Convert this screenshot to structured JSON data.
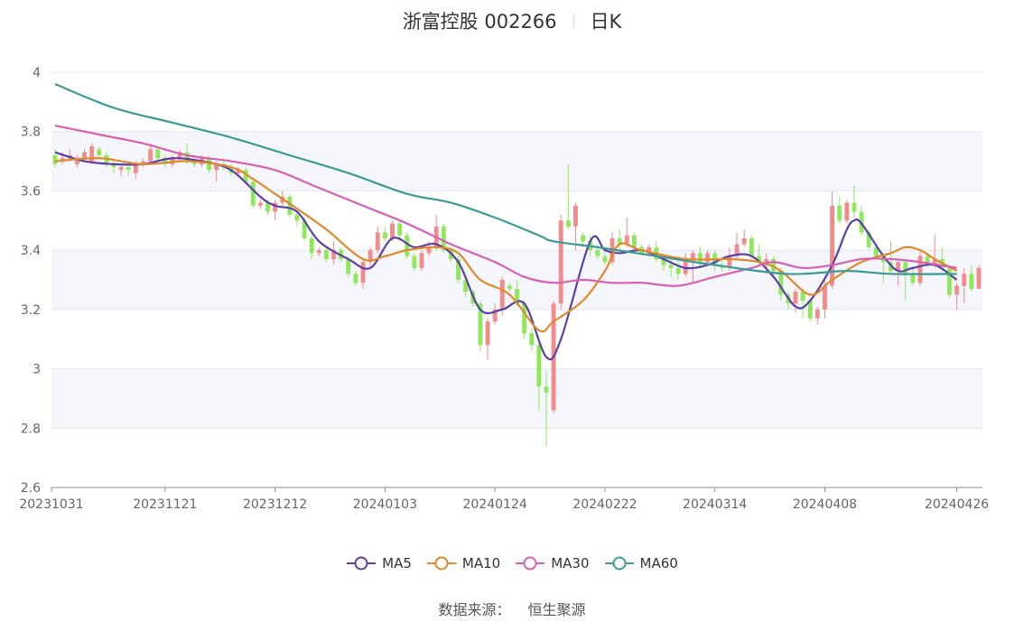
{
  "title": {
    "name": "浙富控股 002266",
    "period": "日K"
  },
  "source": {
    "label": "数据来源：",
    "value": "恒生聚源"
  },
  "chart_data": {
    "type": "candlestick",
    "x_ticks": [
      "20231031",
      "20231121",
      "20231212",
      "20240103",
      "20240124",
      "20240222",
      "20240314",
      "20240408",
      "20240426"
    ],
    "x_tick_index": [
      0,
      15,
      30,
      45,
      60,
      75,
      90,
      105,
      123
    ],
    "y_ticks": [
      "4",
      "3.8",
      "3.6",
      "3.4",
      "3.2",
      "3",
      "2.8",
      "2.6"
    ],
    "ylim": [
      2.6,
      4.0
    ],
    "up_color": "#f28b8b",
    "down_color": "#8fe85a",
    "candles": [
      [
        3.72,
        3.69,
        3.74,
        3.68
      ],
      [
        3.7,
        3.71,
        3.73,
        3.69
      ],
      [
        3.71,
        3.72,
        3.74,
        3.7
      ],
      [
        3.69,
        3.71,
        3.72,
        3.68
      ],
      [
        3.71,
        3.73,
        3.74,
        3.7
      ],
      [
        3.7,
        3.75,
        3.76,
        3.69
      ],
      [
        3.74,
        3.72,
        3.75,
        3.71
      ],
      [
        3.72,
        3.69,
        3.73,
        3.68
      ],
      [
        3.69,
        3.68,
        3.7,
        3.66
      ],
      [
        3.67,
        3.68,
        3.69,
        3.65
      ],
      [
        3.68,
        3.67,
        3.69,
        3.65
      ],
      [
        3.66,
        3.69,
        3.7,
        3.64
      ],
      [
        3.69,
        3.7,
        3.71,
        3.68
      ],
      [
        3.7,
        3.74,
        3.76,
        3.69
      ],
      [
        3.74,
        3.71,
        3.75,
        3.7
      ],
      [
        3.71,
        3.69,
        3.72,
        3.68
      ],
      [
        3.69,
        3.71,
        3.72,
        3.68
      ],
      [
        3.71,
        3.73,
        3.74,
        3.7
      ],
      [
        3.73,
        3.7,
        3.76,
        3.69
      ],
      [
        3.7,
        3.69,
        3.71,
        3.68
      ],
      [
        3.69,
        3.71,
        3.72,
        3.68
      ],
      [
        3.71,
        3.67,
        3.72,
        3.66
      ],
      [
        3.67,
        3.69,
        3.7,
        3.63
      ],
      [
        3.69,
        3.68,
        3.71,
        3.67
      ],
      [
        3.68,
        3.66,
        3.69,
        3.65
      ],
      [
        3.66,
        3.67,
        3.68,
        3.65
      ],
      [
        3.67,
        3.63,
        3.68,
        3.62
      ],
      [
        3.63,
        3.55,
        3.64,
        3.54
      ],
      [
        3.55,
        3.56,
        3.57,
        3.54
      ],
      [
        3.56,
        3.53,
        3.57,
        3.52
      ],
      [
        3.53,
        3.56,
        3.57,
        3.5
      ],
      [
        3.56,
        3.58,
        3.6,
        3.55
      ],
      [
        3.58,
        3.52,
        3.59,
        3.51
      ],
      [
        3.52,
        3.5,
        3.53,
        3.48
      ],
      [
        3.5,
        3.44,
        3.51,
        3.43
      ],
      [
        3.44,
        3.39,
        3.45,
        3.37
      ],
      [
        3.39,
        3.4,
        3.41,
        3.38
      ],
      [
        3.4,
        3.37,
        3.41,
        3.36
      ],
      [
        3.37,
        3.4,
        3.43,
        3.35
      ],
      [
        3.4,
        3.37,
        3.41,
        3.36
      ],
      [
        3.37,
        3.32,
        3.38,
        3.31
      ],
      [
        3.32,
        3.29,
        3.33,
        3.28
      ],
      [
        3.29,
        3.36,
        3.37,
        3.27
      ],
      [
        3.36,
        3.4,
        3.41,
        3.34
      ],
      [
        3.4,
        3.46,
        3.48,
        3.39
      ],
      [
        3.46,
        3.44,
        3.48,
        3.43
      ],
      [
        3.44,
        3.49,
        3.5,
        3.43
      ],
      [
        3.49,
        3.45,
        3.5,
        3.43
      ],
      [
        3.45,
        3.38,
        3.46,
        3.37
      ],
      [
        3.38,
        3.34,
        3.39,
        3.33
      ],
      [
        3.34,
        3.39,
        3.4,
        3.33
      ],
      [
        3.39,
        3.41,
        3.43,
        3.38
      ],
      [
        3.41,
        3.48,
        3.52,
        3.4
      ],
      [
        3.48,
        3.4,
        3.49,
        3.39
      ],
      [
        3.4,
        3.37,
        3.41,
        3.36
      ],
      [
        3.37,
        3.3,
        3.38,
        3.29
      ],
      [
        3.3,
        3.26,
        3.31,
        3.24
      ],
      [
        3.26,
        3.22,
        3.27,
        3.21
      ],
      [
        3.22,
        3.08,
        3.23,
        3.06
      ],
      [
        3.08,
        3.16,
        3.17,
        3.03
      ],
      [
        3.16,
        3.2,
        3.22,
        3.15
      ],
      [
        3.2,
        3.3,
        3.31,
        3.18
      ],
      [
        3.28,
        3.27,
        3.29,
        3.26
      ],
      [
        3.27,
        3.22,
        3.3,
        3.21
      ],
      [
        3.22,
        3.12,
        3.23,
        3.1
      ],
      [
        3.12,
        3.08,
        3.14,
        3.06
      ],
      [
        3.08,
        2.94,
        3.09,
        2.86
      ],
      [
        2.94,
        2.92,
        2.99,
        2.74
      ],
      [
        2.86,
        3.22,
        3.23,
        2.85
      ],
      [
        3.22,
        3.5,
        3.52,
        3.2
      ],
      [
        3.5,
        3.48,
        3.69,
        3.47
      ],
      [
        3.48,
        3.55,
        3.56,
        3.4
      ],
      [
        3.45,
        3.43,
        3.46,
        3.41
      ],
      [
        3.43,
        3.4,
        3.45,
        3.38
      ],
      [
        3.4,
        3.38,
        3.42,
        3.37
      ],
      [
        3.38,
        3.36,
        3.4,
        3.35
      ],
      [
        3.36,
        3.44,
        3.46,
        3.35
      ],
      [
        3.44,
        3.42,
        3.47,
        3.4
      ],
      [
        3.42,
        3.45,
        3.51,
        3.41
      ],
      [
        3.45,
        3.41,
        3.46,
        3.4
      ],
      [
        3.41,
        3.39,
        3.42,
        3.38
      ],
      [
        3.39,
        3.41,
        3.42,
        3.38
      ],
      [
        3.41,
        3.37,
        3.43,
        3.36
      ],
      [
        3.37,
        3.35,
        3.38,
        3.33
      ],
      [
        3.35,
        3.34,
        3.37,
        3.31
      ],
      [
        3.34,
        3.32,
        3.36,
        3.3
      ],
      [
        3.32,
        3.37,
        3.39,
        3.31
      ],
      [
        3.37,
        3.39,
        3.4,
        3.29
      ],
      [
        3.39,
        3.36,
        3.41,
        3.34
      ],
      [
        3.36,
        3.39,
        3.4,
        3.35
      ],
      [
        3.39,
        3.35,
        3.4,
        3.33
      ],
      [
        3.35,
        3.34,
        3.37,
        3.33
      ],
      [
        3.34,
        3.38,
        3.41,
        3.33
      ],
      [
        3.38,
        3.42,
        3.46,
        3.37
      ],
      [
        3.42,
        3.44,
        3.47,
        3.41
      ],
      [
        3.44,
        3.38,
        3.45,
        3.37
      ],
      [
        3.38,
        3.36,
        3.42,
        3.35
      ],
      [
        3.36,
        3.37,
        3.39,
        3.32
      ],
      [
        3.37,
        3.33,
        3.38,
        3.31
      ],
      [
        3.33,
        3.25,
        3.34,
        3.23
      ],
      [
        3.25,
        3.22,
        3.26,
        3.2
      ],
      [
        3.22,
        3.26,
        3.27,
        3.19
      ],
      [
        3.26,
        3.23,
        3.27,
        3.17
      ],
      [
        3.23,
        3.17,
        3.24,
        3.16
      ],
      [
        3.17,
        3.2,
        3.21,
        3.15
      ],
      [
        3.2,
        3.28,
        3.3,
        3.17
      ],
      [
        3.28,
        3.55,
        3.6,
        3.27
      ],
      [
        3.55,
        3.5,
        3.58,
        3.49
      ],
      [
        3.5,
        3.56,
        3.57,
        3.49
      ],
      [
        3.56,
        3.53,
        3.62,
        3.51
      ],
      [
        3.53,
        3.46,
        3.55,
        3.45
      ],
      [
        3.46,
        3.41,
        3.47,
        3.4
      ],
      [
        3.41,
        3.38,
        3.42,
        3.37
      ],
      [
        3.38,
        3.36,
        3.39,
        3.29
      ],
      [
        3.36,
        3.33,
        3.43,
        3.32
      ],
      [
        3.33,
        3.36,
        3.37,
        3.28
      ],
      [
        3.36,
        3.32,
        3.37,
        3.23
      ],
      [
        3.32,
        3.29,
        3.34,
        3.28
      ],
      [
        3.29,
        3.38,
        3.4,
        3.28
      ],
      [
        3.38,
        3.35,
        3.39,
        3.34
      ],
      [
        3.35,
        3.37,
        3.45,
        3.34
      ],
      [
        3.37,
        3.34,
        3.41,
        3.33
      ],
      [
        3.34,
        3.25,
        3.35,
        3.24
      ],
      [
        3.25,
        3.28,
        3.29,
        3.2
      ],
      [
        3.28,
        3.32,
        3.34,
        3.22
      ],
      [
        3.32,
        3.27,
        3.35,
        3.26
      ],
      [
        3.27,
        3.34,
        3.35,
        3.27
      ]
    ],
    "ma_series": [
      {
        "name": "MA5",
        "color": "#5b3fa8",
        "anchors": [
          [
            0,
            3.73
          ],
          [
            4,
            3.7
          ],
          [
            8,
            3.69
          ],
          [
            12,
            3.69
          ],
          [
            16,
            3.71
          ],
          [
            20,
            3.7
          ],
          [
            24,
            3.67
          ],
          [
            28,
            3.58
          ],
          [
            30,
            3.55
          ],
          [
            33,
            3.53
          ],
          [
            36,
            3.43
          ],
          [
            40,
            3.37
          ],
          [
            43,
            3.34
          ],
          [
            46,
            3.44
          ],
          [
            49,
            3.41
          ],
          [
            52,
            3.42
          ],
          [
            55,
            3.36
          ],
          [
            58,
            3.2
          ],
          [
            61,
            3.2
          ],
          [
            64,
            3.22
          ],
          [
            67,
            3.04
          ],
          [
            69,
            3.1
          ],
          [
            73,
            3.43
          ],
          [
            75,
            3.4
          ],
          [
            77,
            3.39
          ],
          [
            80,
            3.4
          ],
          [
            83,
            3.37
          ],
          [
            86,
            3.34
          ],
          [
            89,
            3.35
          ],
          [
            92,
            3.38
          ],
          [
            95,
            3.38
          ],
          [
            98,
            3.31
          ],
          [
            101,
            3.21
          ],
          [
            103,
            3.23
          ],
          [
            106,
            3.35
          ],
          [
            108,
            3.47
          ],
          [
            109,
            3.5
          ],
          [
            110,
            3.49
          ],
          [
            113,
            3.38
          ],
          [
            115,
            3.33
          ],
          [
            117,
            3.34
          ],
          [
            120,
            3.35
          ],
          [
            123,
            3.3
          ]
        ]
      },
      {
        "name": "MA10",
        "color": "#e08a2a",
        "anchors": [
          [
            0,
            3.7
          ],
          [
            6,
            3.71
          ],
          [
            12,
            3.69
          ],
          [
            18,
            3.7
          ],
          [
            24,
            3.68
          ],
          [
            27,
            3.64
          ],
          [
            30,
            3.59
          ],
          [
            33,
            3.54
          ],
          [
            37,
            3.47
          ],
          [
            42,
            3.37
          ],
          [
            45,
            3.38
          ],
          [
            48,
            3.4
          ],
          [
            52,
            3.41
          ],
          [
            55,
            3.39
          ],
          [
            58,
            3.3
          ],
          [
            62,
            3.25
          ],
          [
            66,
            3.13
          ],
          [
            68,
            3.16
          ],
          [
            72,
            3.23
          ],
          [
            75,
            3.33
          ],
          [
            77,
            3.42
          ],
          [
            80,
            3.4
          ],
          [
            86,
            3.37
          ],
          [
            92,
            3.37
          ],
          [
            96,
            3.36
          ],
          [
            99,
            3.33
          ],
          [
            103,
            3.25
          ],
          [
            106,
            3.3
          ],
          [
            110,
            3.36
          ],
          [
            114,
            3.39
          ],
          [
            116,
            3.41
          ],
          [
            118,
            3.4
          ],
          [
            120,
            3.37
          ],
          [
            123,
            3.33
          ]
        ]
      },
      {
        "name": "MA30",
        "color": "#d95fb5",
        "anchors": [
          [
            0,
            3.82
          ],
          [
            6,
            3.79
          ],
          [
            12,
            3.76
          ],
          [
            18,
            3.72
          ],
          [
            24,
            3.7
          ],
          [
            30,
            3.67
          ],
          [
            36,
            3.61
          ],
          [
            42,
            3.55
          ],
          [
            48,
            3.49
          ],
          [
            54,
            3.42
          ],
          [
            60,
            3.36
          ],
          [
            64,
            3.31
          ],
          [
            68,
            3.29
          ],
          [
            72,
            3.3
          ],
          [
            76,
            3.29
          ],
          [
            80,
            3.29
          ],
          [
            85,
            3.28
          ],
          [
            90,
            3.31
          ],
          [
            95,
            3.34
          ],
          [
            98,
            3.36
          ],
          [
            102,
            3.34
          ],
          [
            106,
            3.35
          ],
          [
            110,
            3.37
          ],
          [
            114,
            3.37
          ],
          [
            118,
            3.36
          ],
          [
            123,
            3.34
          ]
        ]
      },
      {
        "name": "MA60",
        "color": "#3a9a98",
        "anchors": [
          [
            0,
            3.96
          ],
          [
            8,
            3.88
          ],
          [
            16,
            3.83
          ],
          [
            24,
            3.78
          ],
          [
            32,
            3.72
          ],
          [
            40,
            3.66
          ],
          [
            48,
            3.59
          ],
          [
            54,
            3.56
          ],
          [
            60,
            3.51
          ],
          [
            66,
            3.45
          ],
          [
            68,
            3.43
          ],
          [
            74,
            3.41
          ],
          [
            82,
            3.38
          ],
          [
            90,
            3.35
          ],
          [
            100,
            3.32
          ],
          [
            108,
            3.33
          ],
          [
            114,
            3.32
          ],
          [
            123,
            3.32
          ]
        ]
      }
    ],
    "legend_position": "bottom"
  }
}
